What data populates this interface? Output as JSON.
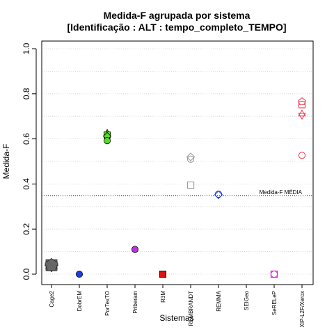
{
  "chart_data": {
    "type": "scatter",
    "title": "Medida-F agrupada por sistema",
    "subtitle": "[Identificação : ALT : tempo_completo_TEMPO]",
    "xlabel": "Sistemas",
    "ylabel": "Medida-F",
    "ylim": [
      0,
      1
    ],
    "yticks": [
      "0.0",
      "0.2",
      "0.4",
      "0.6",
      "0.8",
      "1.0"
    ],
    "grid": "horizontal dotted",
    "categories": [
      "Cage2",
      "DobrEM",
      "PorTexTO",
      "Priberam",
      "R3M",
      "REMBRANDT",
      "REMMA",
      "SEIGeo",
      "SeRELeP",
      "XIP-L2F/Xerox"
    ],
    "series": [
      {
        "category": "Cage2",
        "color": "#666666",
        "filled": true,
        "points": [
          {
            "y": 0.04,
            "shape": "square"
          },
          {
            "y": 0.04,
            "shape": "triangle-up"
          },
          {
            "y": 0.04,
            "shape": "triangle-down"
          },
          {
            "y": 0.04,
            "shape": "diamond"
          },
          {
            "y": 0.04,
            "shape": "circle"
          },
          {
            "y": 0.04,
            "shape": "pentagon"
          }
        ]
      },
      {
        "category": "DobrEM",
        "color": "#1b3fe0",
        "filled": true,
        "points": [
          {
            "y": 0.0,
            "shape": "circle"
          }
        ]
      },
      {
        "category": "PorTexTO",
        "color": "#55dd22",
        "filled": true,
        "points": [
          {
            "y": 0.625,
            "shape": "triangle-up"
          },
          {
            "y": 0.617,
            "shape": "square"
          },
          {
            "y": 0.612,
            "shape": "diamond"
          },
          {
            "y": 0.592,
            "shape": "circle"
          }
        ]
      },
      {
        "category": "Priberam",
        "color": "#bb33dd",
        "filled": true,
        "points": [
          {
            "y": 0.11,
            "shape": "circle"
          }
        ]
      },
      {
        "category": "R3M",
        "color": "#dd1111",
        "filled": true,
        "points": [
          {
            "y": 0.0,
            "shape": "circle"
          },
          {
            "y": 0.0,
            "shape": "square"
          }
        ]
      },
      {
        "category": "REMBRANDT",
        "color": "#9a9a9a",
        "filled": false,
        "points": [
          {
            "y": 0.52,
            "shape": "diamond"
          },
          {
            "y": 0.51,
            "shape": "circle"
          },
          {
            "y": 0.395,
            "shape": "square"
          }
        ]
      },
      {
        "category": "REMMA",
        "color": "#2244dd",
        "filled": false,
        "points": [
          {
            "y": 0.355,
            "shape": "circle"
          },
          {
            "y": 0.352,
            "shape": "diamond"
          }
        ]
      },
      {
        "category": "SEIGeo",
        "color": "#000000",
        "filled": false,
        "points": []
      },
      {
        "category": "SeRELeP",
        "color": "#dd22dd",
        "filled": false,
        "points": [
          {
            "y": 0.0,
            "shape": "circle"
          },
          {
            "y": 0.0,
            "shape": "square"
          }
        ]
      },
      {
        "category": "XIP-L2F/Xerox",
        "color": "#ee4455",
        "filled": false,
        "points": [
          {
            "y": 0.765,
            "shape": "pentagon"
          },
          {
            "y": 0.752,
            "shape": "square"
          },
          {
            "y": 0.71,
            "shape": "triangle-up"
          },
          {
            "y": 0.705,
            "shape": "triangle-down"
          },
          {
            "y": 0.527,
            "shape": "circle"
          }
        ]
      }
    ],
    "reference_line": {
      "y": 0.348,
      "label": "Medida-F MÉDIA",
      "style": "dotted"
    }
  }
}
